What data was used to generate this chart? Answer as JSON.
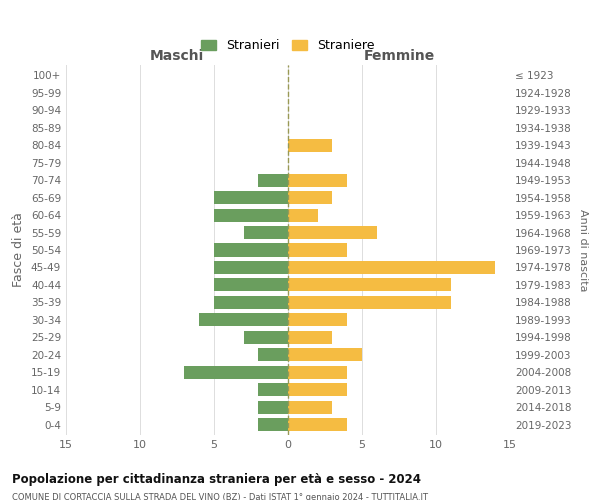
{
  "age_groups": [
    "0-4",
    "5-9",
    "10-14",
    "15-19",
    "20-24",
    "25-29",
    "30-34",
    "35-39",
    "40-44",
    "45-49",
    "50-54",
    "55-59",
    "60-64",
    "65-69",
    "70-74",
    "75-79",
    "80-84",
    "85-89",
    "90-94",
    "95-99",
    "100+"
  ],
  "birth_years": [
    "2019-2023",
    "2014-2018",
    "2009-2013",
    "2004-2008",
    "1999-2003",
    "1994-1998",
    "1989-1993",
    "1984-1988",
    "1979-1983",
    "1974-1978",
    "1969-1973",
    "1964-1968",
    "1959-1963",
    "1954-1958",
    "1949-1953",
    "1944-1948",
    "1939-1943",
    "1934-1938",
    "1929-1933",
    "1924-1928",
    "≤ 1923"
  ],
  "maschi": [
    2,
    2,
    2,
    7,
    2,
    3,
    6,
    5,
    5,
    5,
    5,
    3,
    5,
    5,
    2,
    0,
    0,
    0,
    0,
    0,
    0
  ],
  "femmine": [
    4,
    3,
    4,
    4,
    5,
    3,
    4,
    11,
    11,
    14,
    4,
    6,
    2,
    3,
    4,
    0,
    3,
    0,
    0,
    0,
    0
  ],
  "color_maschi": "#6a9e5e",
  "color_femmine": "#f5bc42",
  "title": "Popolazione per cittadinanza straniera per età e sesso - 2024",
  "subtitle": "COMUNE DI CORTACCIA SULLA STRADA DEL VINO (BZ) - Dati ISTAT 1° gennaio 2024 - TUTTITALIA.IT",
  "xlabel_left": "Maschi",
  "xlabel_right": "Femmine",
  "ylabel": "Fasce di età",
  "ylabel_right": "Anni di nascita",
  "legend_maschi": "Stranieri",
  "legend_femmine": "Straniere",
  "xlim": 15,
  "background_color": "#ffffff"
}
